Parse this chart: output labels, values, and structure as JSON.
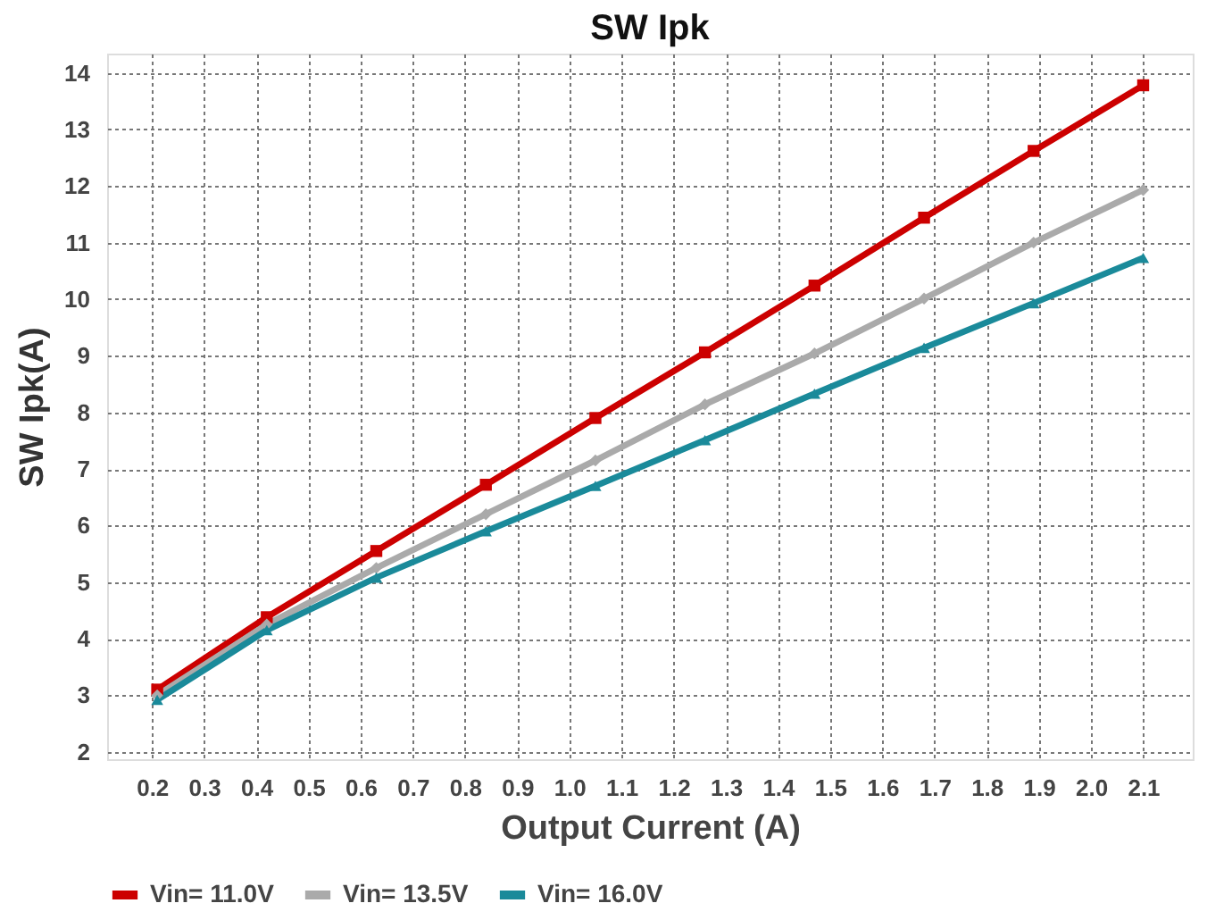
{
  "chart_data": {
    "type": "line",
    "title": "SW Ipk",
    "xlabel": "Output Current (A)",
    "ylabel": "SW Ipk(A)",
    "x": [
      0.21,
      0.42,
      0.63,
      0.84,
      1.05,
      1.26,
      1.47,
      1.68,
      1.89,
      2.1
    ],
    "series": [
      {
        "name": "Vin= 11.0V",
        "color": "#cc0000",
        "marker": "square",
        "values": [
          3.1,
          4.38,
          5.55,
          6.72,
          7.9,
          9.06,
          10.24,
          11.44,
          12.62,
          13.78
        ]
      },
      {
        "name": "Vin= 13.5V",
        "color": "#aaaaaa",
        "marker": "diamond",
        "values": [
          3.0,
          4.25,
          5.25,
          6.2,
          7.15,
          8.14,
          9.04,
          10.01,
          11.0,
          11.93
        ]
      },
      {
        "name": "Vin= 16.0V",
        "color": "#1a8a9a",
        "marker": "triangle",
        "values": [
          2.92,
          4.15,
          5.08,
          5.9,
          6.7,
          7.51,
          8.33,
          9.14,
          9.93,
          10.73
        ]
      }
    ],
    "xlim": [
      0.114,
      2.195
    ],
    "xticks": [
      0.2,
      0.3,
      0.4,
      0.5,
      0.6,
      0.7,
      0.8,
      0.9,
      {
        "value": 1,
        "label": "1.0"
      },
      1.1,
      1.2,
      1.3,
      1.4,
      1.5,
      1.6,
      1.7,
      1.8,
      1.9,
      {
        "value": 2,
        "label": "2.0"
      },
      2.1
    ],
    "ylim": [
      1.87,
      14.34
    ],
    "yticks": [
      2,
      3,
      4,
      5,
      6,
      7,
      8,
      9,
      10,
      11,
      12,
      13,
      14
    ],
    "grid": true,
    "legend": "bottom",
    "line_style": "solid"
  }
}
